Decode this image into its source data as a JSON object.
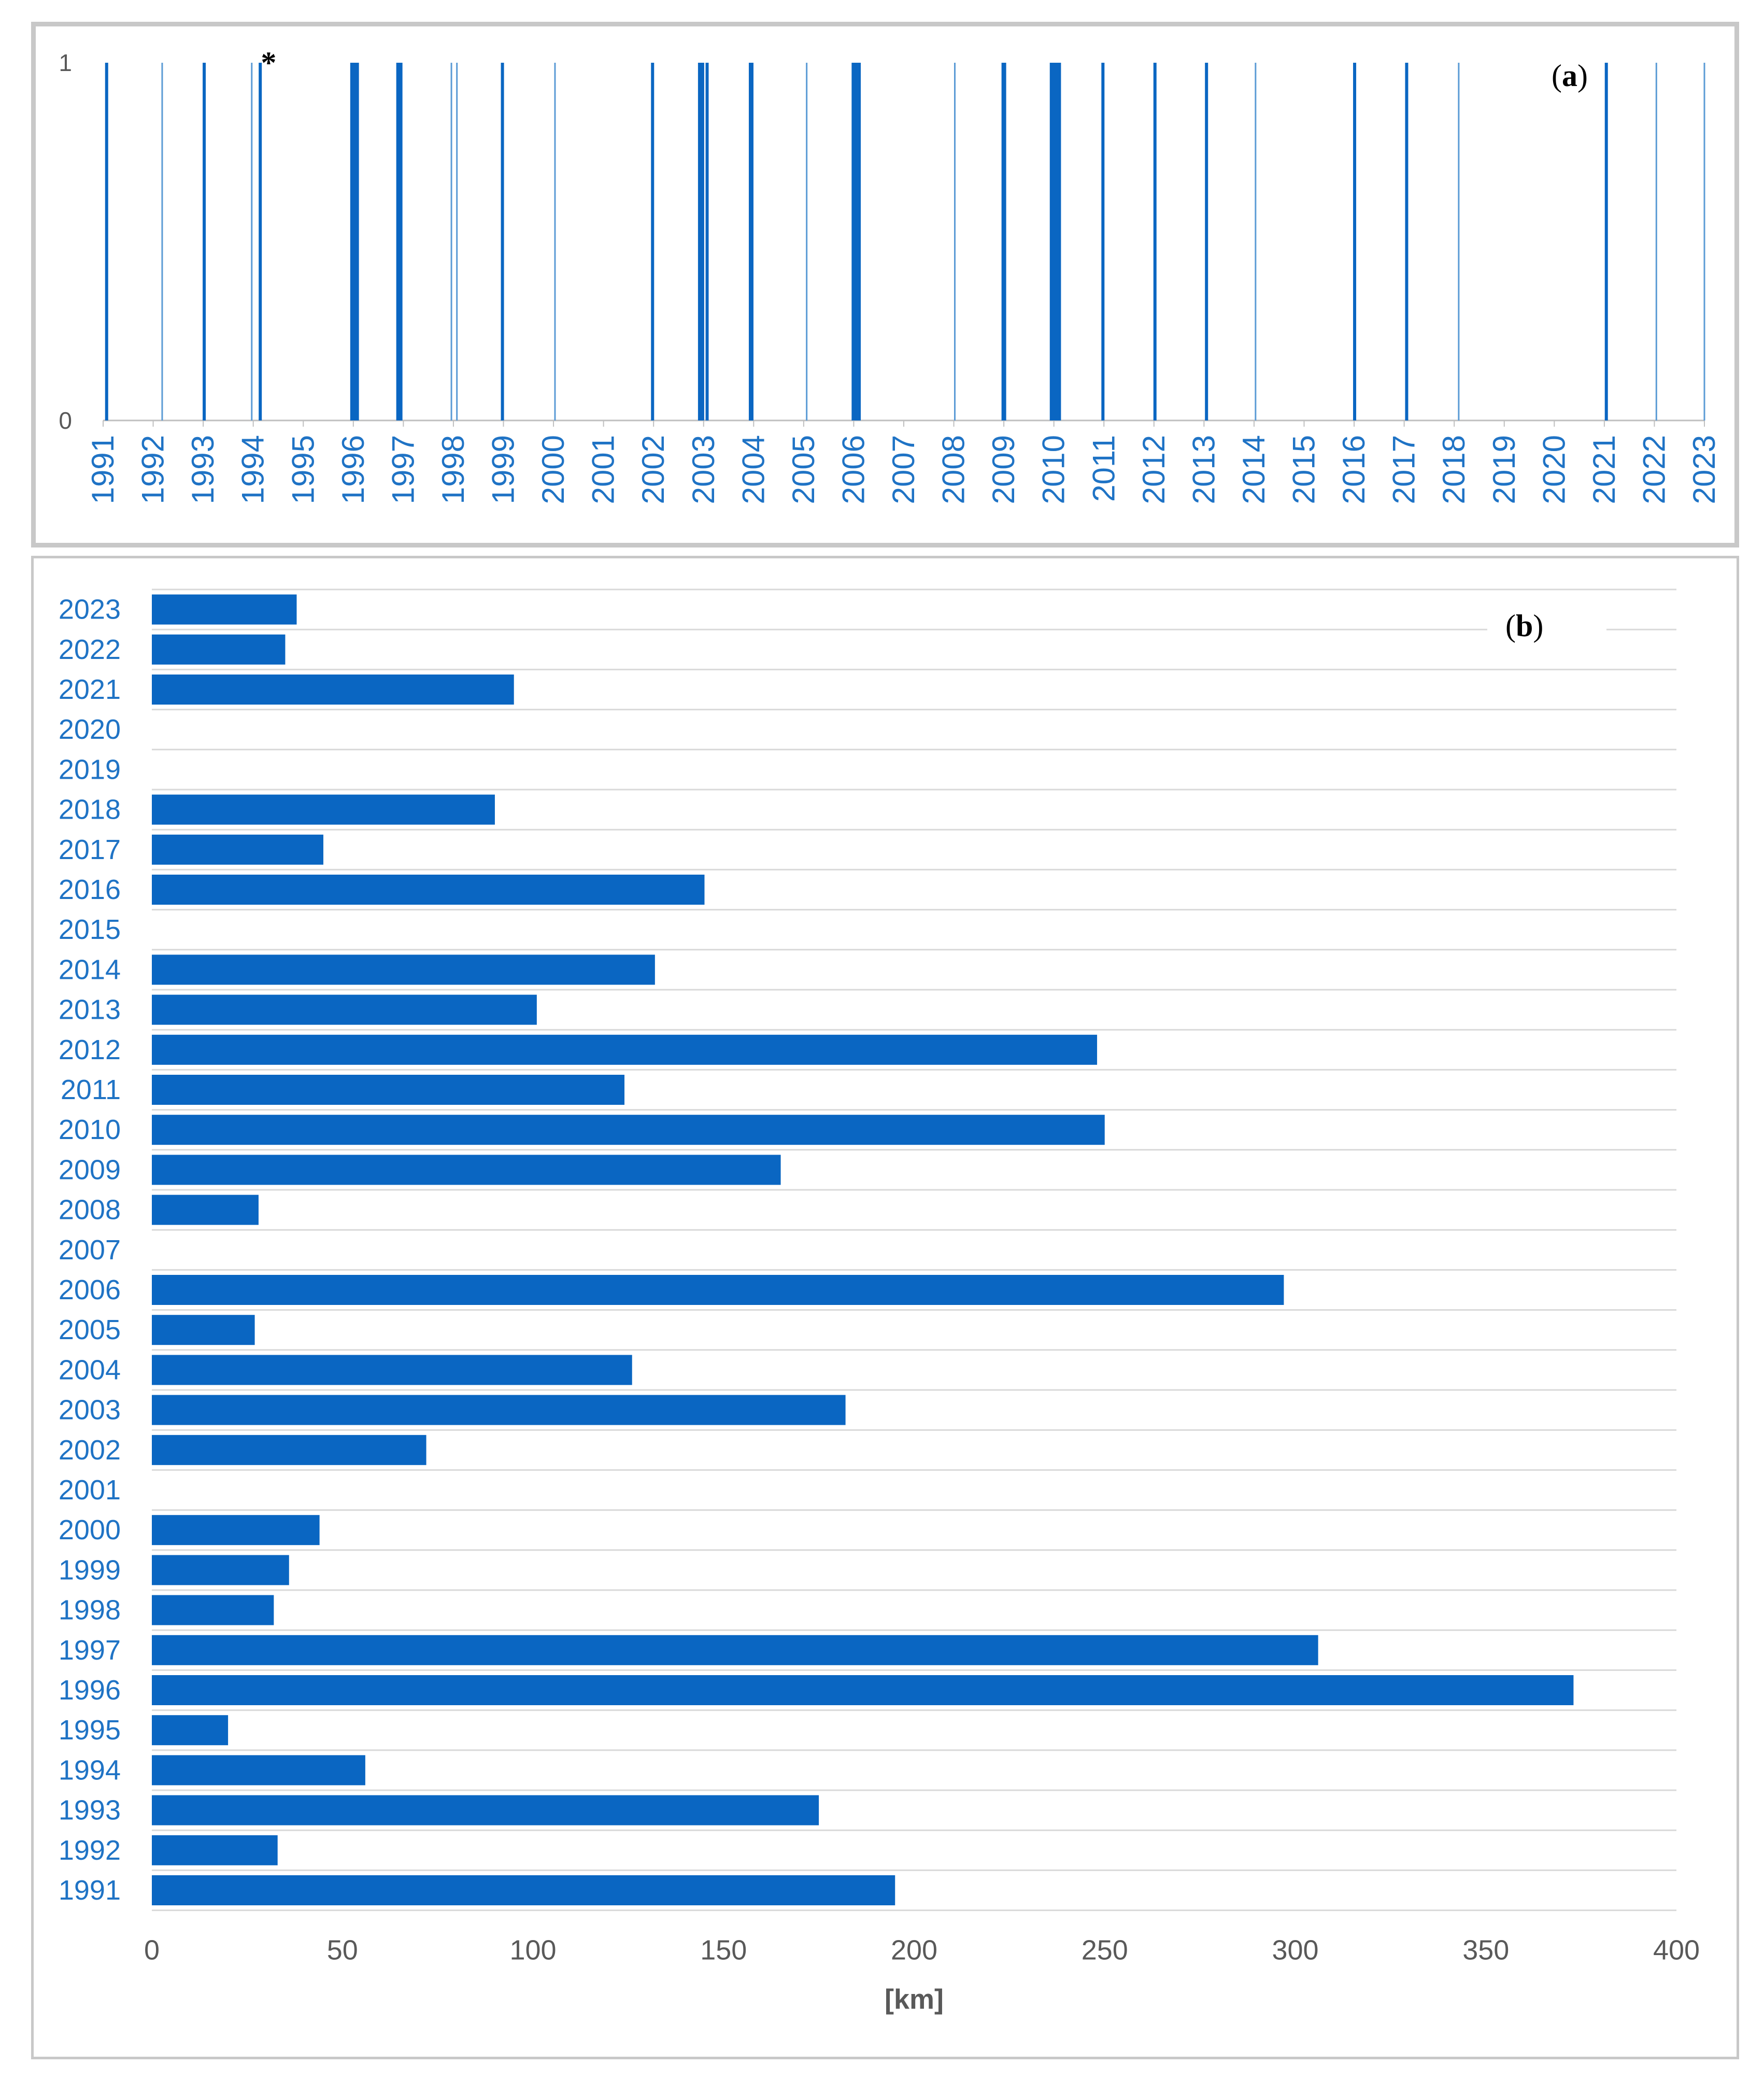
{
  "chart_data": [
    {
      "id": "a",
      "type": "bar",
      "label": "(a)",
      "label_letter": "a",
      "marker": "*",
      "marker_date": 1994.1,
      "ylim": [
        0,
        1
      ],
      "yticks": [
        "0",
        "1"
      ],
      "x_range": [
        1991,
        2023
      ],
      "xticks": [
        "1991",
        "1992",
        "1993",
        "1994",
        "1995",
        "1996",
        "1997",
        "1998",
        "1999",
        "2000",
        "2001",
        "2002",
        "2003",
        "2004",
        "2005",
        "2006",
        "2007",
        "2008",
        "2009",
        "2010",
        "2011",
        "2012",
        "2013",
        "2014",
        "2015",
        "2016",
        "2017",
        "2018",
        "2019",
        "2020",
        "2021",
        "2022",
        "2023"
      ],
      "events": [
        {
          "date": 1991.07,
          "w": 2
        },
        {
          "date": 1992.18,
          "w": 1
        },
        {
          "date": 1993.02,
          "w": 2
        },
        {
          "date": 1993.97,
          "w": 1
        },
        {
          "date": 1994.14,
          "w": 2
        },
        {
          "date": 1996.0,
          "w": 4
        },
        {
          "date": 1996.05,
          "w": 4
        },
        {
          "date": 1996.92,
          "w": 4
        },
        {
          "date": 1997.96,
          "w": 1
        },
        {
          "date": 1998.07,
          "w": 1
        },
        {
          "date": 1998.98,
          "w": 2
        },
        {
          "date": 2000.03,
          "w": 1
        },
        {
          "date": 2001.98,
          "w": 2
        },
        {
          "date": 2002.95,
          "w": 4
        },
        {
          "date": 2003.07,
          "w": 2
        },
        {
          "date": 2003.95,
          "w": 3
        },
        {
          "date": 2005.06,
          "w": 1
        },
        {
          "date": 2006.02,
          "w": 4
        },
        {
          "date": 2006.11,
          "w": 2
        },
        {
          "date": 2008.02,
          "w": 1
        },
        {
          "date": 2009.0,
          "w": 3
        },
        {
          "date": 2009.98,
          "w": 4
        },
        {
          "date": 2010.08,
          "w": 4
        },
        {
          "date": 2010.98,
          "w": 2
        },
        {
          "date": 2012.02,
          "w": 2
        },
        {
          "date": 2013.05,
          "w": 2
        },
        {
          "date": 2014.03,
          "w": 1
        },
        {
          "date": 2016.01,
          "w": 2
        },
        {
          "date": 2017.05,
          "w": 2
        },
        {
          "date": 2018.09,
          "w": 1
        },
        {
          "date": 2021.04,
          "w": 2
        },
        {
          "date": 2022.04,
          "w": 1
        },
        {
          "date": 2023.0,
          "w": 1
        }
      ]
    },
    {
      "id": "b",
      "type": "bar",
      "orientation": "horizontal",
      "label": "(b)",
      "label_letter": "b",
      "xlabel": "[km]",
      "xlim": [
        0,
        400
      ],
      "xticks": [
        "0",
        "50",
        "100",
        "150",
        "200",
        "250",
        "300",
        "350",
        "400"
      ],
      "categories": [
        "2023",
        "2022",
        "2021",
        "2020",
        "2019",
        "2018",
        "2017",
        "2016",
        "2015",
        "2014",
        "2013",
        "2012",
        "2011",
        "2010",
        "2009",
        "2008",
        "2007",
        "2006",
        "2005",
        "2004",
        "2003",
        "2002",
        "2001",
        "2000",
        "1999",
        "1998",
        "1997",
        "1996",
        "1995",
        "1994",
        "1993",
        "1992",
        "1991"
      ],
      "values": [
        38,
        35,
        95,
        0,
        0,
        90,
        45,
        145,
        0,
        132,
        101,
        248,
        124,
        250,
        165,
        28,
        0,
        297,
        27,
        126,
        182,
        72,
        0,
        44,
        36,
        32,
        306,
        373,
        20,
        56,
        175,
        33,
        195
      ]
    }
  ],
  "colors": {
    "bar": "#0a66c2",
    "event_dark": "#0a66c2",
    "event_light": "#5b9bd5",
    "grid": "#d9d9d9",
    "tick_blue": "#1f73c5",
    "tick_gray": "#595959"
  }
}
